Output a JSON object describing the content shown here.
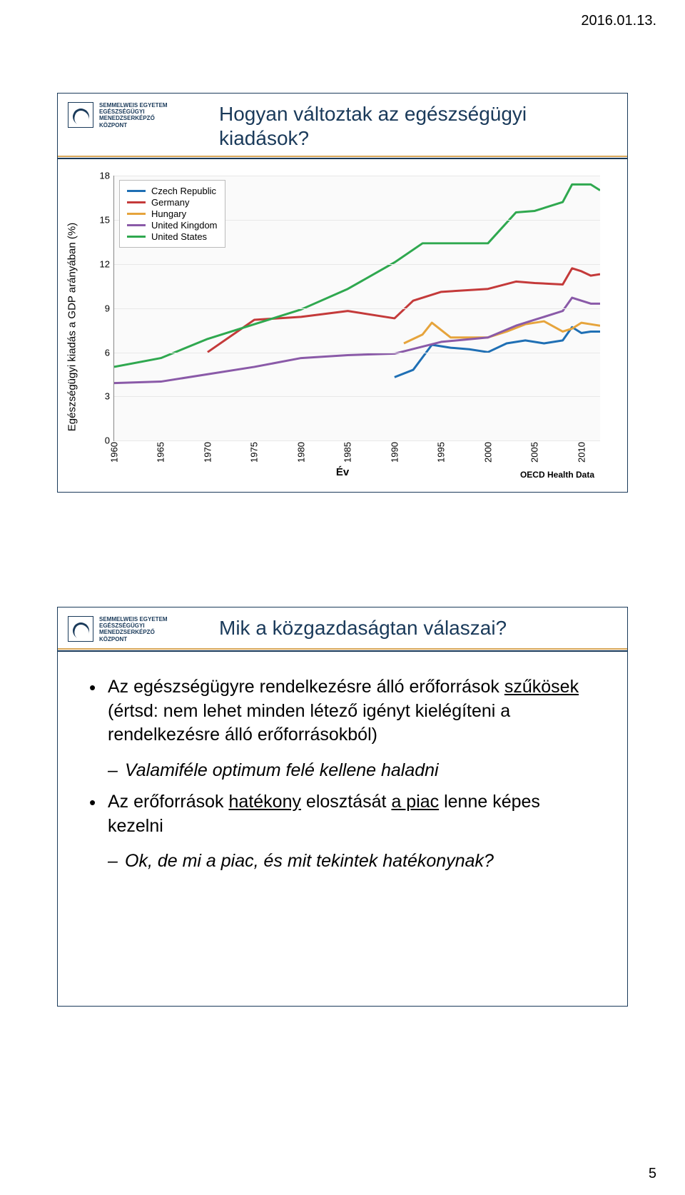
{
  "page": {
    "date": "2016.01.13.",
    "number": "5"
  },
  "logo": {
    "line1": "SEMMELWEIS EGYETEM",
    "line2": "EGÉSZSÉGÜGYI",
    "line3": "MENEDZSERKÉPZŐ",
    "line4": "KÖZPONT"
  },
  "slide1": {
    "title": "Hogyan változtak az egészségügyi kiadások?",
    "chart": {
      "type": "line",
      "ylabel": "Egészségügyi kiadás a GDP arányában (%)",
      "xlabel": "Év",
      "source": "OECD Health Data",
      "ylim": [
        0,
        18
      ],
      "ytick_step": 3,
      "xlim": [
        1960,
        2012
      ],
      "xtick_step": 5,
      "background_color": "#fafafa",
      "grid_color": "#e8e8e8",
      "axis_color": "#888888",
      "line_width": 3,
      "yticks": [
        0,
        3,
        6,
        9,
        12,
        15,
        18
      ],
      "xticks": [
        1960,
        1965,
        1970,
        1975,
        1980,
        1985,
        1990,
        1995,
        2000,
        2005,
        2010
      ],
      "legend_position": "upper-left",
      "series": [
        {
          "name": "Czech Republic",
          "color": "#1f6fb4",
          "data": [
            [
              1990,
              4.3
            ],
            [
              1992,
              4.8
            ],
            [
              1994,
              6.5
            ],
            [
              1996,
              6.3
            ],
            [
              1998,
              6.2
            ],
            [
              2000,
              6.0
            ],
            [
              2002,
              6.6
            ],
            [
              2004,
              6.8
            ],
            [
              2006,
              6.6
            ],
            [
              2008,
              6.8
            ],
            [
              2009,
              7.7
            ],
            [
              2010,
              7.3
            ],
            [
              2011,
              7.4
            ],
            [
              2012,
              7.4
            ]
          ]
        },
        {
          "name": "Germany",
          "color": "#c43a3a",
          "data": [
            [
              1970,
              6.0
            ],
            [
              1975,
              8.2
            ],
            [
              1980,
              8.4
            ],
            [
              1985,
              8.8
            ],
            [
              1990,
              8.3
            ],
            [
              1992,
              9.5
            ],
            [
              1995,
              10.1
            ],
            [
              2000,
              10.3
            ],
            [
              2003,
              10.8
            ],
            [
              2005,
              10.7
            ],
            [
              2008,
              10.6
            ],
            [
              2009,
              11.7
            ],
            [
              2010,
              11.5
            ],
            [
              2011,
              11.2
            ],
            [
              2012,
              11.3
            ]
          ]
        },
        {
          "name": "Hungary",
          "color": "#e6a43c",
          "data": [
            [
              1991,
              6.6
            ],
            [
              1993,
              7.2
            ],
            [
              1994,
              8.0
            ],
            [
              1996,
              7.0
            ],
            [
              1998,
              7.0
            ],
            [
              2000,
              7.0
            ],
            [
              2002,
              7.4
            ],
            [
              2004,
              7.9
            ],
            [
              2006,
              8.1
            ],
            [
              2008,
              7.4
            ],
            [
              2009,
              7.6
            ],
            [
              2010,
              8.0
            ],
            [
              2011,
              7.9
            ],
            [
              2012,
              7.8
            ]
          ]
        },
        {
          "name": "United Kingdom",
          "color": "#8a5aa8",
          "data": [
            [
              1960,
              3.9
            ],
            [
              1965,
              4.0
            ],
            [
              1970,
              4.5
            ],
            [
              1975,
              5.0
            ],
            [
              1980,
              5.6
            ],
            [
              1985,
              5.8
            ],
            [
              1990,
              5.9
            ],
            [
              1995,
              6.7
            ],
            [
              2000,
              7.0
            ],
            [
              2003,
              7.8
            ],
            [
              2005,
              8.2
            ],
            [
              2008,
              8.8
            ],
            [
              2009,
              9.7
            ],
            [
              2010,
              9.5
            ],
            [
              2011,
              9.3
            ],
            [
              2012,
              9.3
            ]
          ]
        },
        {
          "name": "United States",
          "color": "#2fa84f",
          "data": [
            [
              1960,
              5.0
            ],
            [
              1965,
              5.6
            ],
            [
              1970,
              6.9
            ],
            [
              1975,
              7.9
            ],
            [
              1980,
              8.9
            ],
            [
              1985,
              10.3
            ],
            [
              1990,
              12.1
            ],
            [
              1993,
              13.4
            ],
            [
              1996,
              13.4
            ],
            [
              2000,
              13.4
            ],
            [
              2003,
              15.5
            ],
            [
              2005,
              15.6
            ],
            [
              2008,
              16.2
            ],
            [
              2009,
              17.4
            ],
            [
              2010,
              17.4
            ],
            [
              2011,
              17.4
            ],
            [
              2012,
              17.0
            ]
          ]
        }
      ]
    }
  },
  "slide2": {
    "title": "Mik a közgazdaságtan válaszai?",
    "bullet1_pre": "Az egészségügyre rendelkezésre álló erőforrások ",
    "bullet1_ul": "szűkösek",
    "bullet1_post": " (értsd: nem lehet minden létező igényt kielégíteni a rendelkezésre álló erőforrásokból)",
    "sub1": "Valamiféle optimum felé kellene haladni",
    "bullet2_pre": "Az erőforrások ",
    "bullet2_ul1": "hatékony",
    "bullet2_mid": " elosztását ",
    "bullet2_ul2": "a piac",
    "bullet2_post": " lenne képes kezelni",
    "sub2": "Ok, de mi a piac, és mit tekintek hatékonynak?"
  }
}
